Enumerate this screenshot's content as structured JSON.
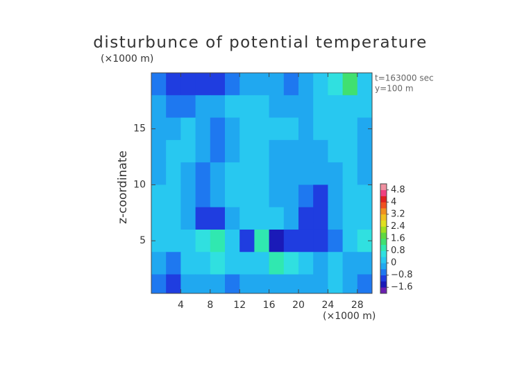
{
  "chart_data": {
    "type": "contour",
    "title": "disturbunce of potential temperature",
    "yunit": "(×1000 m)",
    "xunit": "(×1000 m)",
    "ylabel": "z-coordinate",
    "annotations": [
      "t=163000 sec",
      "y=100 m"
    ],
    "xlim": [
      0,
      30
    ],
    "ylim": [
      0.3,
      20
    ],
    "xticks": [
      4,
      8,
      12,
      16,
      20,
      24,
      28
    ],
    "yticks": [
      5,
      10,
      15
    ],
    "x": [
      1,
      3,
      5,
      7,
      9,
      11,
      13,
      15,
      17,
      19,
      21,
      23,
      25,
      27,
      29
    ],
    "y": [
      19,
      17,
      15,
      13,
      11,
      9,
      7,
      5,
      3,
      1
    ],
    "z": [
      [
        -0.6,
        -1.0,
        -1.1,
        -1.0,
        -0.9,
        -0.7,
        -0.4,
        -0.2,
        -0.3,
        -0.5,
        -0.3,
        0.2,
        0.8,
        1.4,
        0.4
      ],
      [
        -0.4,
        -0.5,
        -0.6,
        -0.3,
        -0.2,
        0.1,
        0.2,
        0.1,
        -0.1,
        -0.3,
        -0.2,
        0.1,
        0.3,
        0.4,
        0.2
      ],
      [
        -0.3,
        -0.2,
        0.1,
        -0.2,
        -0.5,
        -0.3,
        0.1,
        0.2,
        0.1,
        0.0,
        -0.2,
        0.0,
        0.2,
        0.1,
        -0.2
      ],
      [
        -0.2,
        0.0,
        0.1,
        -0.4,
        -0.6,
        -0.2,
        0.2,
        0.1,
        -0.1,
        -0.2,
        -0.3,
        -0.1,
        0.1,
        0.0,
        -0.3
      ],
      [
        -0.1,
        0.1,
        -0.2,
        -0.5,
        -0.3,
        0.0,
        0.3,
        0.0,
        -0.3,
        -0.4,
        -0.3,
        -0.3,
        -0.1,
        0.1,
        -0.2
      ],
      [
        0.0,
        0.2,
        -0.3,
        -0.6,
        -0.2,
        0.1,
        0.3,
        0.2,
        -0.1,
        -0.2,
        -0.6,
        -0.8,
        -0.2,
        0.2,
        0.0
      ],
      [
        0.2,
        0.3,
        -0.2,
        -1.0,
        -1.2,
        -0.4,
        0.2,
        0.4,
        0.1,
        -0.4,
        -1.2,
        -0.9,
        -0.2,
        0.3,
        0.1
      ],
      [
        0.2,
        0.1,
        0.4,
        0.6,
        1.0,
        0.3,
        -0.8,
        1.0,
        -1.4,
        -1.2,
        -0.8,
        -1.2,
        -0.6,
        0.2,
        0.5
      ],
      [
        -0.3,
        -0.5,
        0.2,
        0.3,
        0.5,
        0.3,
        0.2,
        0.4,
        1.0,
        0.6,
        0.2,
        -0.3,
        0.0,
        -0.2,
        -0.4
      ],
      [
        -0.7,
        -0.8,
        -0.4,
        -0.2,
        -0.3,
        -0.5,
        -0.3,
        -0.2,
        -0.3,
        -0.2,
        -0.1,
        -0.4,
        0.3,
        -0.3,
        -0.5
      ]
    ],
    "clim": [
      -2,
      5.2
    ],
    "cticks": [
      {
        "value": -1.6,
        "label": "−1.6"
      },
      {
        "value": -0.8,
        "label": "−0.8"
      },
      0,
      0.8,
      1.6,
      2.4,
      3.2,
      4,
      4.8
    ],
    "colors": [
      "#6a1fb0",
      "#1a1ab8",
      "#1f3de0",
      "#1e78f0",
      "#20a8f0",
      "#28c8f0",
      "#30e0e0",
      "#30e8b0",
      "#40e070",
      "#60d840",
      "#a0e020",
      "#e0e020",
      "#f0c020",
      "#f09020",
      "#f05020",
      "#e02020",
      "#f04080",
      "#f090a0"
    ]
  }
}
